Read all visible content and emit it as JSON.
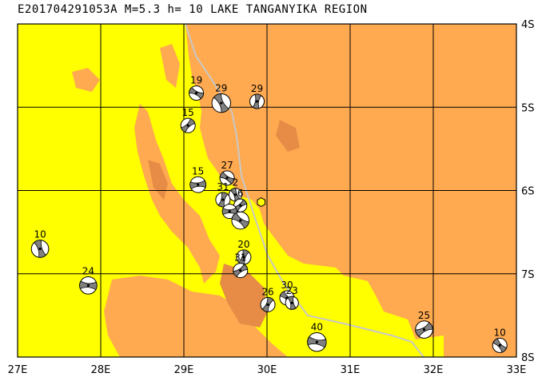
{
  "title": "E201704291053A M=5.3 h= 10 LAKE TANGANYIKA REGION",
  "colors": {
    "lowland": "#FFFF00",
    "highland": "#FFAA50",
    "peak": "#E68C46",
    "border": "#C8C8C8",
    "grid": "#000000",
    "beach_dark": "#808080",
    "beach_light": "#FFFFFF",
    "epicenter": "#FFFF00"
  },
  "axes": {
    "lon_min": 27,
    "lon_max": 33,
    "lat_min": -8,
    "lat_max": -4,
    "lon_labels": [
      "27E",
      "28E",
      "29E",
      "30E",
      "31E",
      "32E",
      "33E"
    ],
    "lat_labels": [
      "4S",
      "5S",
      "6S",
      "7S",
      "8S"
    ]
  },
  "epicenter": {
    "lon": 29.93,
    "lat": -6.14
  },
  "mechanisms": [
    {
      "label": "19",
      "lon": 29.15,
      "lat": -4.83,
      "size": 1.0
    },
    {
      "label": "29",
      "lon": 29.45,
      "lat": -4.95,
      "size": 1.3
    },
    {
      "label": "29",
      "lon": 29.88,
      "lat": -4.93,
      "size": 1.0
    },
    {
      "label": "15",
      "lon": 29.05,
      "lat": -5.22,
      "size": 1.0
    },
    {
      "label": "15",
      "lon": 29.17,
      "lat": -5.93,
      "size": 1.1
    },
    {
      "label": "27",
      "lon": 29.52,
      "lat": -5.85,
      "size": 1.0
    },
    {
      "label": "2",
      "lon": 29.62,
      "lat": -6.05,
      "size": 0.9
    },
    {
      "label": "31",
      "lon": 29.47,
      "lat": -6.11,
      "size": 1.0
    },
    {
      "label": "6",
      "lon": 29.68,
      "lat": -6.18,
      "size": 0.9
    },
    {
      "label": "",
      "lon": 29.55,
      "lat": -6.25,
      "size": 1.0
    },
    {
      "label": "",
      "lon": 29.68,
      "lat": -6.36,
      "size": 1.2
    },
    {
      "label": "10",
      "lon": 27.27,
      "lat": -6.7,
      "size": 1.2
    },
    {
      "label": "20",
      "lon": 29.72,
      "lat": -6.8,
      "size": 1.0
    },
    {
      "label": "31",
      "lon": 29.68,
      "lat": -6.96,
      "size": 1.0
    },
    {
      "label": "24",
      "lon": 27.85,
      "lat": -7.14,
      "size": 1.2
    },
    {
      "label": "30",
      "lon": 30.24,
      "lat": -7.29,
      "size": 1.0
    },
    {
      "label": "23",
      "lon": 30.3,
      "lat": -7.35,
      "size": 0.9
    },
    {
      "label": "26",
      "lon": 30.01,
      "lat": -7.37,
      "size": 1.0
    },
    {
      "label": "25",
      "lon": 31.89,
      "lat": -7.67,
      "size": 1.2
    },
    {
      "label": "40",
      "lon": 30.6,
      "lat": -7.82,
      "size": 1.3
    },
    {
      "label": "10",
      "lon": 32.8,
      "lat": -7.86,
      "size": 1.0
    }
  ]
}
